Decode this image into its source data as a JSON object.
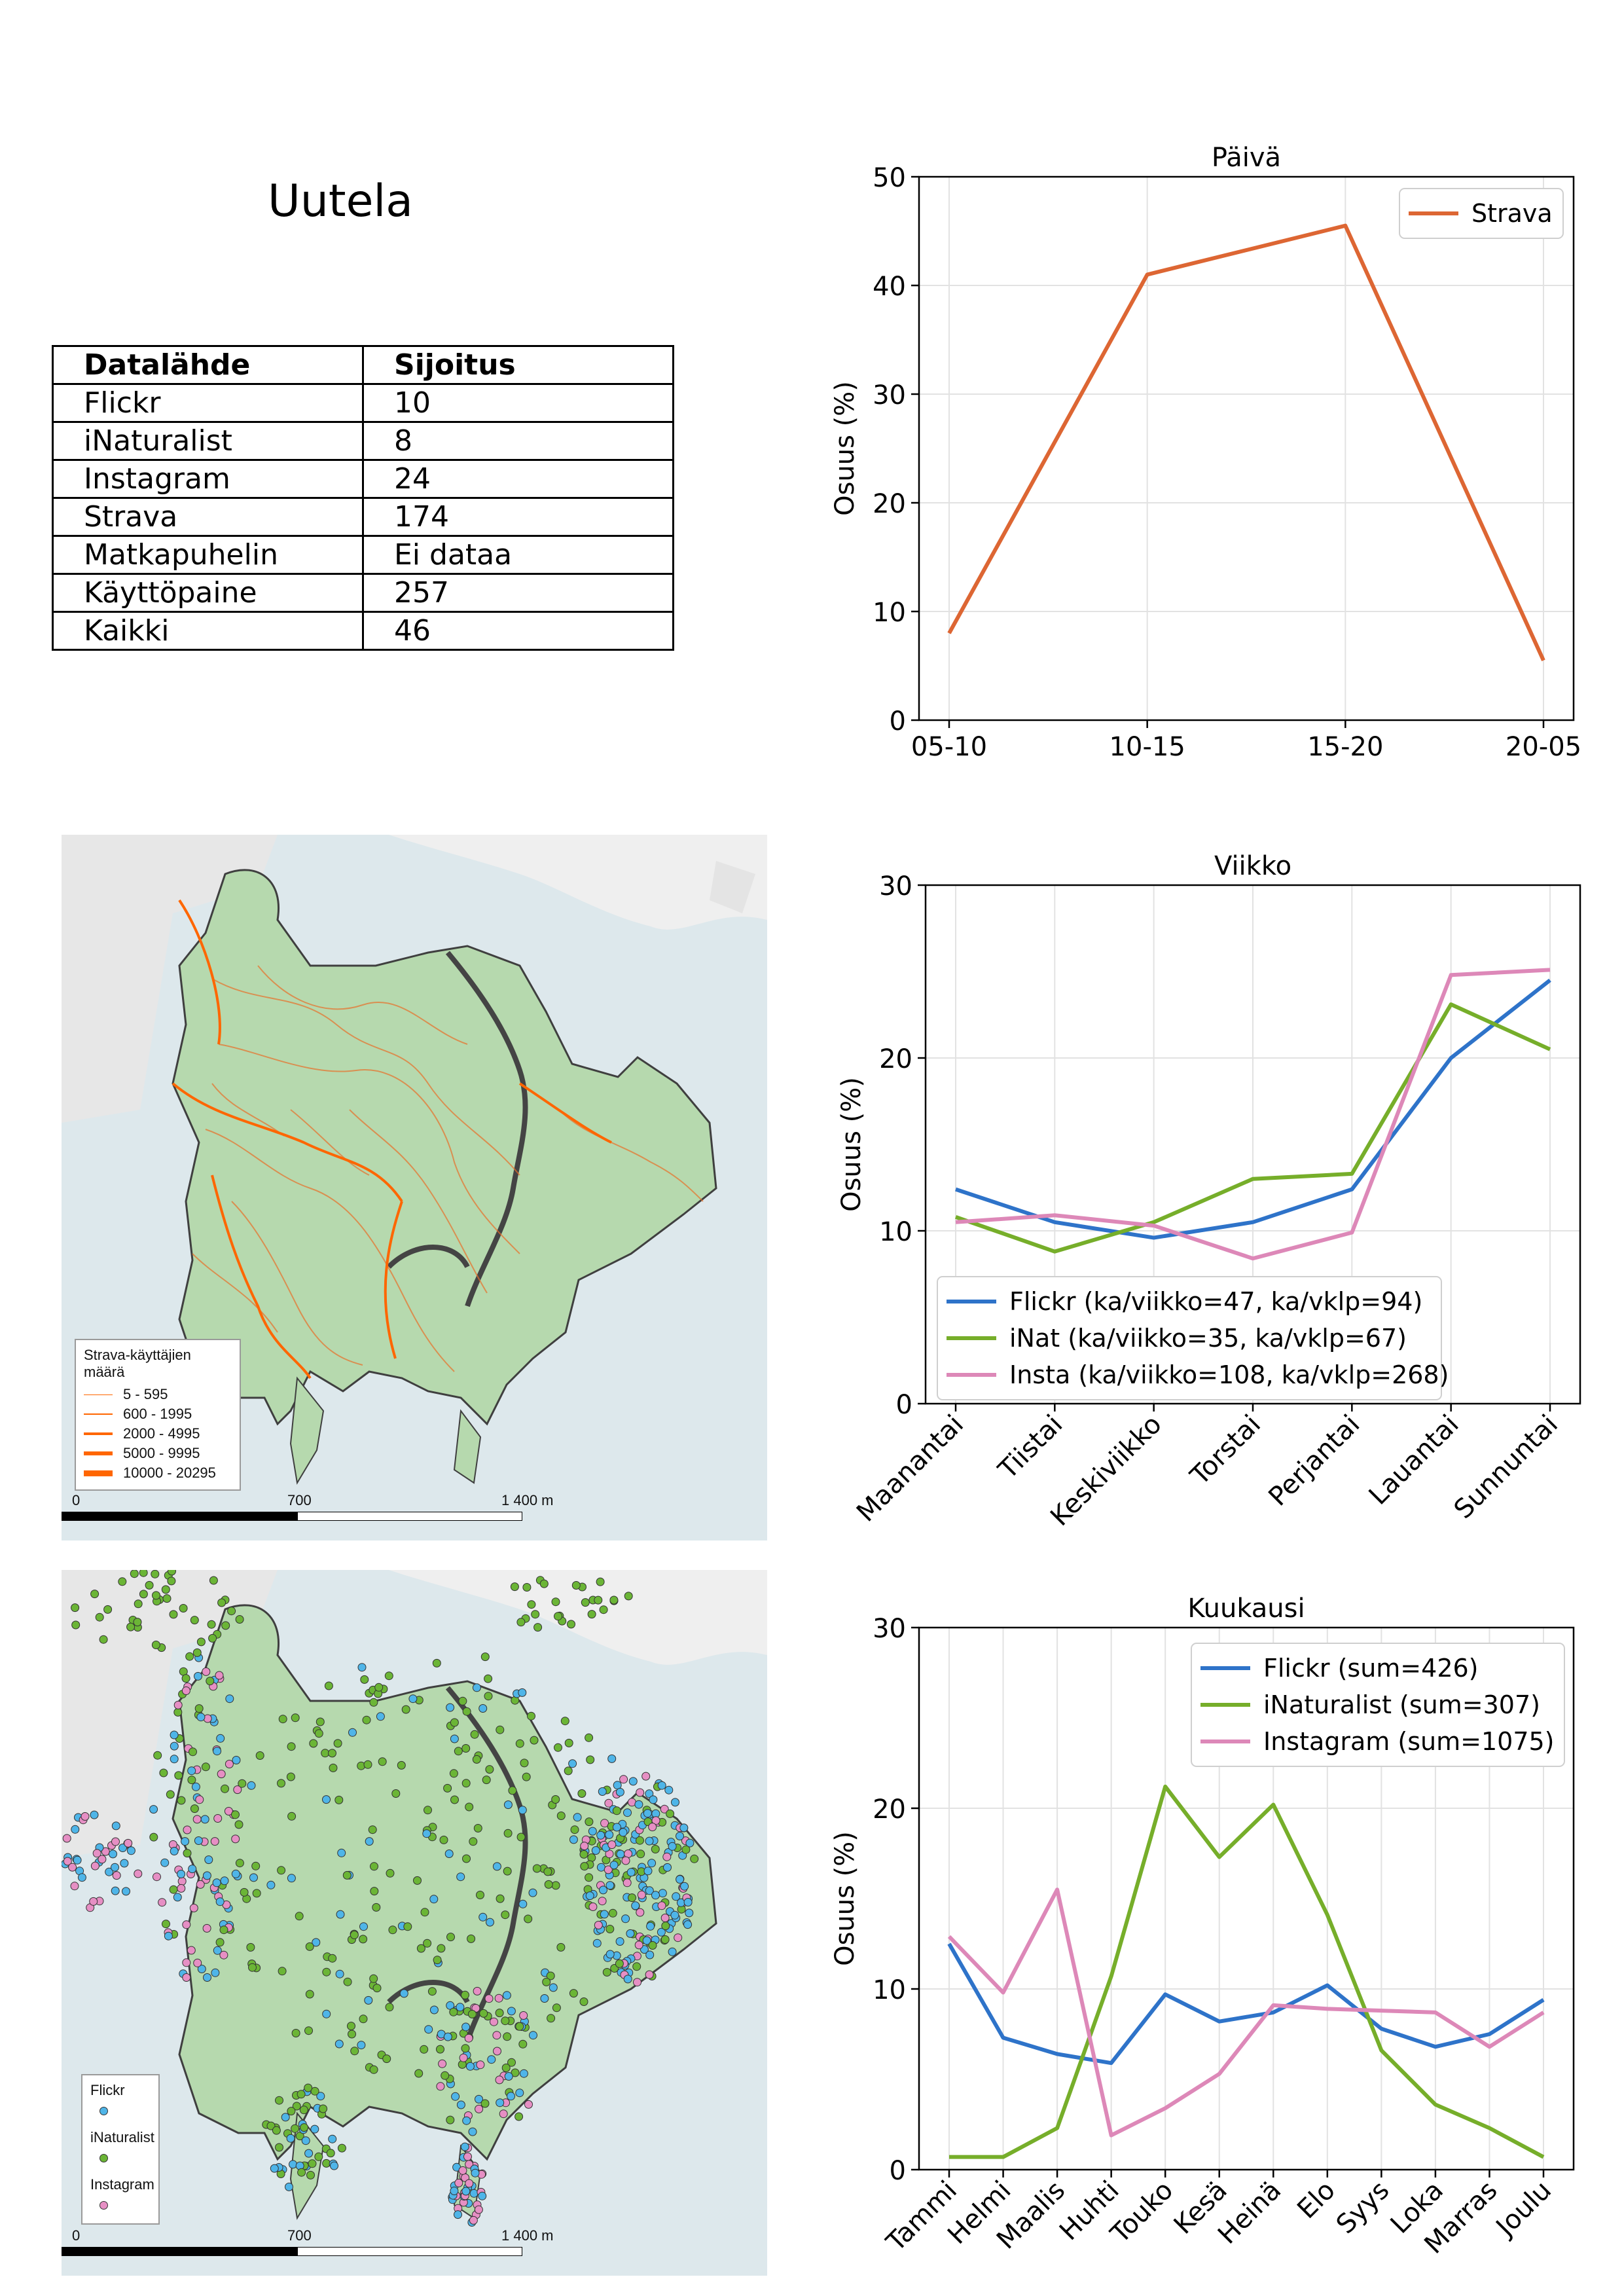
{
  "page": {
    "title": "Uutela"
  },
  "table": {
    "headers": [
      "Datalähde",
      "Sijoitus"
    ],
    "rows": [
      [
        "Flickr",
        "10"
      ],
      [
        "iNaturalist",
        "8"
      ],
      [
        "Instagram",
        "24"
      ],
      [
        "Strava",
        "174"
      ],
      [
        "Matkapuhelin",
        "Ei dataa"
      ],
      [
        "Käyttöpaine",
        "257"
      ],
      [
        "Kaikki",
        "46"
      ]
    ]
  },
  "maps": {
    "strava": {
      "legend_title": "Strava-käyttäjien määrä",
      "legend_items": [
        {
          "label": "5 - 595"
        },
        {
          "label": "600 - 1995"
        },
        {
          "label": "2000 - 4995"
        },
        {
          "label": "5000 - 9995"
        },
        {
          "label": "10000 - 20295"
        }
      ],
      "scale_labels": [
        "0",
        "700",
        "1 400 m"
      ]
    },
    "points": {
      "legend_items": [
        {
          "label": "Flickr",
          "color": "#4fb5e8"
        },
        {
          "label": "iNaturalist",
          "color": "#6bb536"
        },
        {
          "label": "Instagram",
          "color": "#e68fc4"
        }
      ],
      "scale_labels": [
        "0",
        "700",
        "1 400 m"
      ]
    }
  },
  "chart_data": [
    {
      "type": "line",
      "title": "Päivä",
      "ylabel": "Osuus (%)",
      "xlabel": "",
      "categories": [
        "05-10",
        "10-15",
        "15-20",
        "20-05"
      ],
      "ylim": [
        0,
        50
      ],
      "yticks": [
        0,
        10,
        20,
        30,
        40,
        50
      ],
      "grid": true,
      "legend": "top-right",
      "series": [
        {
          "name": "Strava",
          "color": "#dd6633",
          "values": [
            8,
            41,
            45.5,
            5.5
          ]
        }
      ]
    },
    {
      "type": "line",
      "title": "Viikko",
      "ylabel": "Osuus (%)",
      "xlabel": "",
      "categories": [
        "Maanantai",
        "Tiistai",
        "Keskiviikko",
        "Torstai",
        "Perjantai",
        "Lauantai",
        "Sunnuntai"
      ],
      "ylim": [
        0,
        30
      ],
      "yticks": [
        0,
        10,
        20,
        30
      ],
      "grid": true,
      "legend": "bottom-left",
      "series": [
        {
          "name": "Flickr (ka/viikko=47, ka/vklp=94)",
          "color": "#2e73c9",
          "values": [
            12.4,
            10.5,
            9.6,
            10.5,
            12.4,
            20,
            24.5
          ]
        },
        {
          "name": "iNat (ka/viikko=35, ka/vklp=67)",
          "color": "#76ae2a",
          "values": [
            10.8,
            8.8,
            10.5,
            13,
            13.3,
            23.1,
            20.5
          ]
        },
        {
          "name": "Insta (ka/viikko=108, ka/vklp=268)",
          "color": "#dd88b8",
          "values": [
            10.5,
            10.9,
            10.3,
            8.4,
            9.9,
            24.8,
            25.1
          ]
        }
      ]
    },
    {
      "type": "line",
      "title": "Kuukausi",
      "ylabel": "Osuus (%)",
      "xlabel": "",
      "categories": [
        "Tammi",
        "Helmi",
        "Maalis",
        "Huhti",
        "Touko",
        "Kesä",
        "Heinä",
        "Elo",
        "Syys",
        "Loka",
        "Marras",
        "Joulu"
      ],
      "ylim": [
        0,
        30
      ],
      "yticks": [
        0,
        10,
        20,
        30
      ],
      "grid": true,
      "legend": "top-right",
      "series": [
        {
          "name": "Flickr (sum=426)",
          "color": "#2e73c9",
          "values": [
            12.5,
            7.3,
            6.4,
            5.9,
            9.7,
            8.2,
            8.7,
            10.2,
            7.8,
            6.8,
            7.5,
            9.4
          ]
        },
        {
          "name": "iNaturalist (sum=307)",
          "color": "#76ae2a",
          "values": [
            0.7,
            0.7,
            2.3,
            10.7,
            21.2,
            17.3,
            20.2,
            14.1,
            6.6,
            3.6,
            2.3,
            0.7
          ]
        },
        {
          "name": "Instagram (sum=1075)",
          "color": "#dd88b8",
          "values": [
            12.9,
            9.8,
            15.5,
            1.9,
            3.4,
            5.3,
            9.1,
            8.9,
            8.8,
            8.7,
            6.8,
            8.7
          ]
        }
      ]
    }
  ]
}
